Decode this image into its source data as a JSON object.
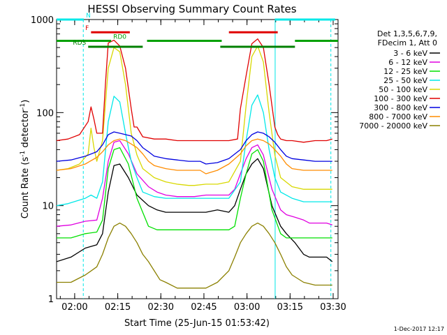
{
  "chart_data": {
    "type": "line",
    "title": "HESSI Observing Summary Count Rates",
    "xlabel": "Start Time (25-Jun-15 01:53:42)",
    "ylabel_main": "Count Rate (s",
    "ylabel_sup1": "-1",
    "ylabel_mid": " detector",
    "ylabel_sup2": "-1",
    "ylabel_end": ")",
    "ylog": true,
    "ylim": [
      1,
      1000
    ],
    "xlim_min": [
      0,
      98
    ],
    "x_ticks": [
      {
        "min": 6.3,
        "label": "02:00"
      },
      {
        "min": 21.3,
        "label": "02:15"
      },
      {
        "min": 36.3,
        "label": "02:30"
      },
      {
        "min": 51.3,
        "label": "02:45"
      },
      {
        "min": 66.3,
        "label": "03:00"
      },
      {
        "min": 81.3,
        "label": "03:15"
      },
      {
        "min": 96.3,
        "label": "03:30"
      }
    ],
    "y_ticks": [
      {
        "v": 1,
        "label": "1"
      },
      {
        "v": 10,
        "label": "10"
      },
      {
        "v": 100,
        "label": "100"
      },
      {
        "v": 1000,
        "label": "1000"
      }
    ],
    "legend_header": [
      "Det 1,3,5,6,7,9,",
      "FDecim 1, Att 0"
    ],
    "series": [
      {
        "name": "3 - 6 keV",
        "color": "#000000",
        "x": [
          0,
          5,
          10,
          14,
          16,
          18,
          20,
          22,
          25,
          28,
          32,
          35,
          38,
          42,
          46,
          48,
          52,
          56,
          60,
          62,
          64,
          66,
          68,
          70,
          72,
          75,
          78,
          80,
          83,
          86,
          88,
          91,
          94,
          96
        ],
        "y": [
          2.5,
          2.8,
          3.5,
          3.8,
          5,
          14,
          27,
          28,
          20,
          13,
          10,
          9,
          8.5,
          8.5,
          8.5,
          8.5,
          8.5,
          9,
          8.5,
          10,
          15,
          22,
          28,
          32,
          25,
          10,
          6,
          5,
          4,
          3,
          2.8,
          2.8,
          2.8,
          2.5
        ]
      },
      {
        "name": "6 - 12 keV",
        "color": "#e000e0",
        "x": [
          0,
          5,
          10,
          14,
          16,
          18,
          20,
          22,
          25,
          28,
          32,
          35,
          38,
          42,
          46,
          48,
          52,
          56,
          60,
          62,
          64,
          66,
          68,
          70,
          72,
          75,
          78,
          80,
          83,
          86,
          88,
          91,
          94,
          96
        ],
        "y": [
          6,
          6.2,
          6.8,
          7,
          12,
          30,
          48,
          50,
          36,
          22,
          16,
          14,
          13,
          12.5,
          12.5,
          12.5,
          13,
          13,
          13,
          15,
          22,
          32,
          42,
          45,
          35,
          15,
          9,
          8,
          7.5,
          7,
          6.5,
          6.5,
          6.5,
          6.2
        ]
      },
      {
        "name": "12 - 25 keV",
        "color": "#00e000",
        "x": [
          0,
          5,
          10,
          14,
          16,
          18,
          20,
          22,
          25,
          28,
          32,
          35,
          38,
          42,
          46,
          48,
          52,
          56,
          60,
          62,
          64,
          66,
          68,
          70,
          72,
          75,
          78,
          80,
          83,
          86,
          88,
          91,
          94,
          96
        ],
        "y": [
          4.5,
          4.5,
          5,
          5.2,
          7,
          25,
          40,
          42,
          28,
          12,
          6,
          5.5,
          5.5,
          5.5,
          5.5,
          5.5,
          5.5,
          5.5,
          5.5,
          6,
          12,
          22,
          36,
          40,
          30,
          9,
          5,
          4.5,
          4.5,
          4.5,
          4.5,
          4.5,
          4.5,
          4.5
        ]
      },
      {
        "name": "25 - 50 keV",
        "color": "#00e8e8",
        "x": [
          0,
          4,
          8,
          10,
          12,
          14,
          16,
          18,
          20,
          22,
          24,
          26,
          28,
          30,
          34,
          38,
          42,
          46,
          48,
          52,
          56,
          60,
          64,
          66,
          68,
          70,
          72,
          74,
          76,
          78,
          82,
          86,
          90,
          94,
          96
        ],
        "y": [
          10,
          10.5,
          11.5,
          12,
          13,
          12,
          18,
          80,
          150,
          130,
          60,
          30,
          20,
          14,
          12.5,
          12,
          12,
          12,
          12,
          12,
          12,
          12,
          18,
          50,
          120,
          155,
          100,
          40,
          20,
          14,
          12,
          11,
          11,
          11,
          11
        ]
      },
      {
        "name": "50 - 100 keV",
        "color": "#d8d800",
        "x": [
          0,
          4,
          8,
          11,
          12,
          13,
          14,
          16,
          18,
          20,
          22,
          24,
          26,
          28,
          30,
          34,
          38,
          42,
          46,
          48,
          52,
          56,
          60,
          64,
          66,
          68,
          70,
          72,
          74,
          76,
          78,
          82,
          86,
          90,
          94,
          96
        ],
        "y": [
          24,
          25,
          28,
          36,
          68,
          42,
          30,
          50,
          300,
          500,
          450,
          200,
          60,
          35,
          25,
          20,
          18,
          17,
          16.5,
          16.5,
          17,
          17,
          18,
          30,
          120,
          400,
          520,
          350,
          100,
          35,
          20,
          16,
          15,
          15,
          15,
          15
        ]
      },
      {
        "name": "100 - 300 keV",
        "color": "#e00000",
        "x": [
          0,
          4,
          8,
          11,
          12,
          13,
          14,
          16,
          17,
          18,
          20,
          22,
          24,
          26,
          27,
          28,
          30,
          34,
          38,
          42,
          46,
          48,
          52,
          56,
          60,
          63,
          64,
          66,
          68,
          70,
          72,
          74,
          76,
          77,
          78,
          80,
          82,
          86,
          90,
          94,
          96
        ],
        "y": [
          50,
          52,
          58,
          80,
          115,
          85,
          60,
          60,
          200,
          560,
          600,
          520,
          300,
          110,
          70,
          70,
          55,
          52,
          52,
          50,
          50,
          50,
          50,
          50,
          50,
          52,
          110,
          250,
          550,
          620,
          500,
          200,
          70,
          58,
          52,
          50,
          50,
          48,
          50,
          50,
          52
        ]
      },
      {
        "name": "300 - 800 keV",
        "color": "#0000e0",
        "x": [
          0,
          5,
          10,
          14,
          16,
          18,
          20,
          22,
          24,
          26,
          28,
          30,
          32,
          34,
          38,
          42,
          46,
          48,
          50,
          52,
          56,
          60,
          64,
          66,
          68,
          70,
          72,
          74,
          76,
          78,
          80,
          82,
          86,
          90,
          94,
          96
        ],
        "y": [
          30,
          31,
          34,
          38,
          45,
          58,
          62,
          60,
          58,
          56,
          50,
          42,
          38,
          34,
          32,
          31,
          30,
          30,
          30,
          28,
          29,
          32,
          40,
          50,
          58,
          62,
          60,
          55,
          48,
          40,
          34,
          32,
          31,
          30,
          30,
          30
        ]
      },
      {
        "name": "800 - 7000 keV",
        "color": "#ff8c00",
        "x": [
          0,
          5,
          10,
          14,
          16,
          18,
          20,
          22,
          24,
          26,
          28,
          30,
          32,
          34,
          38,
          42,
          46,
          48,
          50,
          52,
          56,
          60,
          64,
          66,
          68,
          70,
          72,
          74,
          76,
          78,
          80,
          82,
          86,
          90,
          94,
          96
        ],
        "y": [
          24,
          25,
          28,
          33,
          38,
          45,
          50,
          52,
          50,
          46,
          42,
          36,
          30,
          27,
          25,
          24,
          24,
          24,
          24,
          22,
          24,
          28,
          36,
          44,
          50,
          52,
          50,
          46,
          40,
          34,
          28,
          25,
          24,
          24,
          24,
          24
        ]
      },
      {
        "name": "7000 - 20000 keV",
        "color": "#8b8000",
        "x": [
          0,
          5,
          10,
          14,
          16,
          18,
          20,
          22,
          24,
          26,
          28,
          30,
          32,
          34,
          36,
          38,
          42,
          46,
          48,
          50,
          52,
          56,
          60,
          62,
          64,
          66,
          68,
          70,
          72,
          74,
          76,
          78,
          80,
          82,
          86,
          90,
          94,
          96
        ],
        "y": [
          1.5,
          1.5,
          1.8,
          2.2,
          3,
          4.5,
          6,
          6.5,
          6,
          5,
          4,
          3,
          2.5,
          2,
          1.6,
          1.5,
          1.3,
          1.3,
          1.3,
          1.3,
          1.3,
          1.5,
          2,
          2.8,
          4,
          5,
          6,
          6.5,
          6,
          5,
          4,
          3,
          2.2,
          1.8,
          1.5,
          1.4,
          1.4,
          1.4
        ]
      }
    ],
    "flags": [
      {
        "label": "N",
        "color": "#00e8e8",
        "y": 1000,
        "segments": [
          [
            0,
            9.5
          ],
          [
            76,
            97
          ]
        ]
      },
      {
        "label": "F",
        "color": "#e00000",
        "y": 730,
        "segments": [
          [
            12,
            25.5
          ],
          [
            60,
            77
          ]
        ]
      },
      {
        "label": "RD0",
        "color": "#00a000",
        "y": 590,
        "segments": [
          [
            0,
            19
          ],
          [
            31.5,
            57.5
          ],
          [
            83,
            98
          ]
        ]
      },
      {
        "label": "RDS",
        "color": "#008000",
        "y": 510,
        "segments": [
          [
            11,
            30
          ],
          [
            57,
            83
          ]
        ]
      }
    ],
    "saa_lines_min": [
      9.3,
      95.5
    ],
    "night_lines_min": [
      76.1
    ]
  },
  "footer": {
    "date": "1-Dec-2017 12:17"
  }
}
